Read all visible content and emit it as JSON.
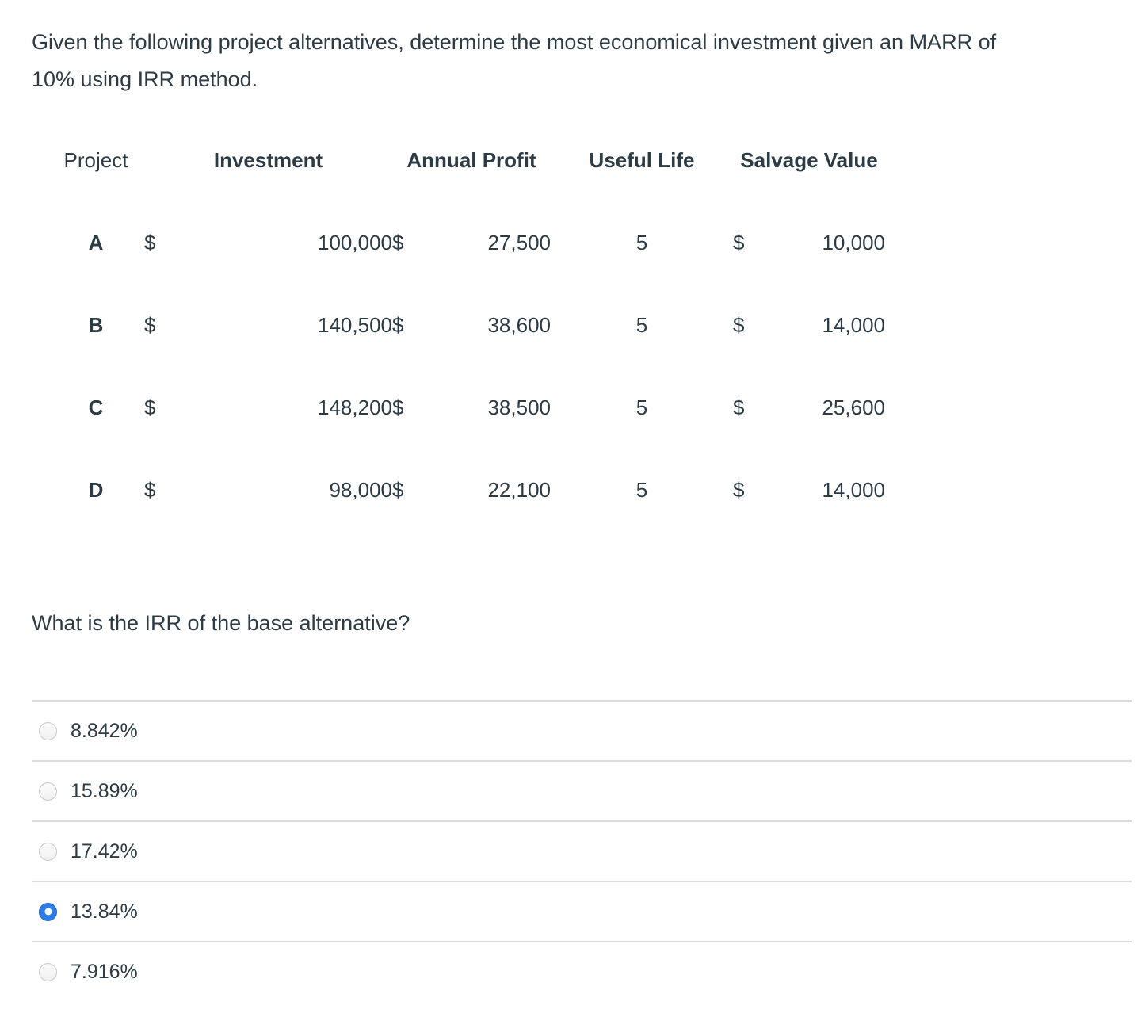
{
  "question": {
    "prompt": "Given the following project alternatives, determine the most economical investment given an MARR of 10% using IRR method.",
    "sub_prompt": "What is the IRR of the base alternative?",
    "options": [
      {
        "label": "8.842%",
        "selected": false
      },
      {
        "label": "15.89%",
        "selected": false
      },
      {
        "label": "17.42%",
        "selected": false
      },
      {
        "label": "13.84%",
        "selected": true
      },
      {
        "label": "7.916%",
        "selected": false
      }
    ]
  },
  "table": {
    "headers": [
      "Project",
      "Investment",
      "Annual Profit",
      "Useful Life",
      "Salvage Value"
    ],
    "currency_symbol": "$",
    "rows": [
      {
        "project": "A",
        "investment": "100,000",
        "annual_profit": "27,500",
        "useful_life": "5",
        "salvage_value": "10,000"
      },
      {
        "project": "B",
        "investment": "140,500",
        "annual_profit": "38,600",
        "useful_life": "5",
        "salvage_value": "14,000"
      },
      {
        "project": "C",
        "investment": "148,200",
        "annual_profit": "38,500",
        "useful_life": "5",
        "salvage_value": "25,600"
      },
      {
        "project": "D",
        "investment": "98,000",
        "annual_profit": "22,100",
        "useful_life": "5",
        "salvage_value": "14,000"
      }
    ]
  },
  "colors": {
    "text": "#2D3B45",
    "divider": "#DCDCDC",
    "radio_selected_fill": "#2E7DE4",
    "radio_unselected_border": "#C3C8CC",
    "background": "#FFFFFF"
  }
}
